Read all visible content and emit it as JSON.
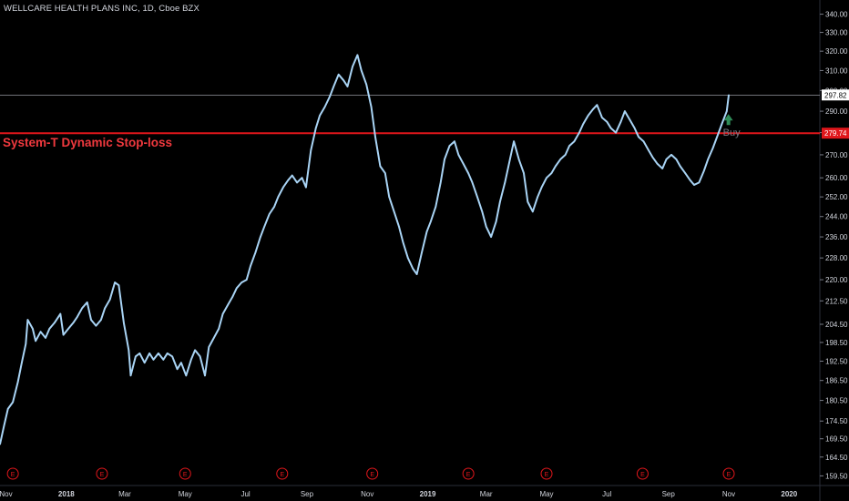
{
  "header": {
    "symbol_title": "WELLCARE HEALTH PLANS INC, 1D, Cboe BZX"
  },
  "colors": {
    "background": "#000000",
    "price_line": "#a9d4f5",
    "stop_line": "#e0161b",
    "text": "#d1d4dc",
    "last_price_label_bg": "#ffffff",
    "stop_label_bg": "#e0161b",
    "earnings_marker": "#e0161b",
    "buy_arrow": "#2e8b57"
  },
  "annotation": {
    "stop_loss_label": "System-T Dynamic Stop-loss",
    "buy_label": "Buy",
    "earnings_marker_label": "E"
  },
  "chart_data": {
    "type": "line",
    "title": "WELLCARE HEALTH PLANS INC, 1D, Cboe BZX",
    "y_scale": "log",
    "ylim": [
      157,
      348
    ],
    "y_ticks": [
      "340.00",
      "330.00",
      "320.00",
      "310.00",
      "300.00",
      "290.00",
      "280.00",
      "270.00",
      "260.00",
      "252.00",
      "244.00",
      "236.00",
      "228.00",
      "220.00",
      "212.50",
      "204.50",
      "198.50",
      "192.50",
      "186.50",
      "180.50",
      "174.50",
      "169.50",
      "164.50",
      "159.50"
    ],
    "x_ticks": [
      "Nov",
      "2018",
      "Mar",
      "May",
      "Jul",
      "Sep",
      "Nov",
      "2019",
      "Mar",
      "May",
      "Jul",
      "Sep",
      "Nov",
      "2020"
    ],
    "x_tick_dates": [
      "2017-11-01",
      "2018-01-01",
      "2018-03-01",
      "2018-05-01",
      "2018-07-01",
      "2018-09-01",
      "2018-11-01",
      "2019-01-01",
      "2019-03-01",
      "2019-05-01",
      "2019-07-01",
      "2019-09-01",
      "2019-11-01",
      "2020-01-01"
    ],
    "xlim": [
      "2017-10-26",
      "2020-02-01"
    ],
    "series": [
      {
        "type": "line",
        "points": [
          [
            "2017-10-26",
            168
          ],
          [
            "2017-10-30",
            173
          ],
          [
            "2017-11-03",
            178
          ],
          [
            "2017-11-08",
            180
          ],
          [
            "2017-11-13",
            186
          ],
          [
            "2017-11-17",
            192
          ],
          [
            "2017-11-21",
            198
          ],
          [
            "2017-11-23",
            206
          ],
          [
            "2017-11-28",
            203
          ],
          [
            "2017-12-01",
            199
          ],
          [
            "2017-12-06",
            202
          ],
          [
            "2017-12-11",
            200
          ],
          [
            "2017-12-15",
            203
          ],
          [
            "2017-12-20",
            205
          ],
          [
            "2017-12-26",
            208
          ],
          [
            "2017-12-29",
            201
          ],
          [
            "2018-01-03",
            203
          ],
          [
            "2018-01-08",
            205
          ],
          [
            "2018-01-12",
            207
          ],
          [
            "2018-01-17",
            210
          ],
          [
            "2018-01-22",
            212
          ],
          [
            "2018-01-26",
            206
          ],
          [
            "2018-01-31",
            204
          ],
          [
            "2018-02-05",
            206
          ],
          [
            "2018-02-09",
            210
          ],
          [
            "2018-02-14",
            213
          ],
          [
            "2018-02-19",
            219
          ],
          [
            "2018-02-23",
            218
          ],
          [
            "2018-02-28",
            205
          ],
          [
            "2018-03-05",
            196
          ],
          [
            "2018-03-07",
            188
          ],
          [
            "2018-03-12",
            194
          ],
          [
            "2018-03-16",
            195
          ],
          [
            "2018-03-21",
            192
          ],
          [
            "2018-03-26",
            195
          ],
          [
            "2018-03-30",
            193
          ],
          [
            "2018-04-04",
            195
          ],
          [
            "2018-04-09",
            193
          ],
          [
            "2018-04-13",
            195
          ],
          [
            "2018-04-18",
            194
          ],
          [
            "2018-04-23",
            190
          ],
          [
            "2018-04-27",
            192
          ],
          [
            "2018-05-02",
            188
          ],
          [
            "2018-05-07",
            193
          ],
          [
            "2018-05-11",
            196
          ],
          [
            "2018-05-16",
            194
          ],
          [
            "2018-05-21",
            188
          ],
          [
            "2018-05-25",
            197
          ],
          [
            "2018-05-30",
            200
          ],
          [
            "2018-06-04",
            203
          ],
          [
            "2018-06-08",
            208
          ],
          [
            "2018-06-13",
            211
          ],
          [
            "2018-06-18",
            214
          ],
          [
            "2018-06-22",
            217
          ],
          [
            "2018-06-27",
            219
          ],
          [
            "2018-07-02",
            220
          ],
          [
            "2018-07-06",
            225
          ],
          [
            "2018-07-11",
            230
          ],
          [
            "2018-07-16",
            236
          ],
          [
            "2018-07-20",
            240
          ],
          [
            "2018-07-25",
            245
          ],
          [
            "2018-07-30",
            248
          ],
          [
            "2018-08-03",
            252
          ],
          [
            "2018-08-08",
            256
          ],
          [
            "2018-08-13",
            259
          ],
          [
            "2018-08-17",
            261
          ],
          [
            "2018-08-22",
            258
          ],
          [
            "2018-08-27",
            260
          ],
          [
            "2018-08-31",
            256
          ],
          [
            "2018-09-05",
            272
          ],
          [
            "2018-09-10",
            282
          ],
          [
            "2018-09-14",
            288
          ],
          [
            "2018-09-19",
            292
          ],
          [
            "2018-09-24",
            297
          ],
          [
            "2018-09-28",
            302
          ],
          [
            "2018-10-03",
            308
          ],
          [
            "2018-10-08",
            305
          ],
          [
            "2018-10-12",
            302
          ],
          [
            "2018-10-17",
            312
          ],
          [
            "2018-10-22",
            318
          ],
          [
            "2018-10-26",
            310
          ],
          [
            "2018-10-31",
            303
          ],
          [
            "2018-11-05",
            292
          ],
          [
            "2018-11-09",
            278
          ],
          [
            "2018-11-14",
            265
          ],
          [
            "2018-11-19",
            262
          ],
          [
            "2018-11-23",
            252
          ],
          [
            "2018-11-28",
            246
          ],
          [
            "2018-12-03",
            240
          ],
          [
            "2018-12-07",
            234
          ],
          [
            "2018-12-12",
            228
          ],
          [
            "2018-12-17",
            224
          ],
          [
            "2018-12-21",
            222
          ],
          [
            "2018-12-26",
            230
          ],
          [
            "2018-12-31",
            238
          ],
          [
            "2019-01-04",
            242
          ],
          [
            "2019-01-09",
            248
          ],
          [
            "2019-01-14",
            258
          ],
          [
            "2019-01-18",
            268
          ],
          [
            "2019-01-23",
            274
          ],
          [
            "2019-01-28",
            276
          ],
          [
            "2019-02-01",
            270
          ],
          [
            "2019-02-06",
            266
          ],
          [
            "2019-02-11",
            262
          ],
          [
            "2019-02-15",
            258
          ],
          [
            "2019-02-20",
            252
          ],
          [
            "2019-02-25",
            246
          ],
          [
            "2019-03-01",
            240
          ],
          [
            "2019-03-06",
            236
          ],
          [
            "2019-03-11",
            242
          ],
          [
            "2019-03-15",
            250
          ],
          [
            "2019-03-20",
            258
          ],
          [
            "2019-03-25",
            268
          ],
          [
            "2019-03-29",
            276
          ],
          [
            "2019-04-03",
            268
          ],
          [
            "2019-04-08",
            262
          ],
          [
            "2019-04-12",
            250
          ],
          [
            "2019-04-17",
            246
          ],
          [
            "2019-04-22",
            252
          ],
          [
            "2019-04-26",
            256
          ],
          [
            "2019-05-01",
            260
          ],
          [
            "2019-05-06",
            262
          ],
          [
            "2019-05-10",
            265
          ],
          [
            "2019-05-15",
            268
          ],
          [
            "2019-05-20",
            270
          ],
          [
            "2019-05-24",
            274
          ],
          [
            "2019-05-29",
            276
          ],
          [
            "2019-06-03",
            280
          ],
          [
            "2019-06-07",
            284
          ],
          [
            "2019-06-12",
            288
          ],
          [
            "2019-06-17",
            291
          ],
          [
            "2019-06-21",
            293
          ],
          [
            "2019-06-26",
            287
          ],
          [
            "2019-07-01",
            285
          ],
          [
            "2019-07-05",
            282
          ],
          [
            "2019-07-10",
            280
          ],
          [
            "2019-07-15",
            285
          ],
          [
            "2019-07-19",
            290
          ],
          [
            "2019-07-24",
            286
          ],
          [
            "2019-07-29",
            282
          ],
          [
            "2019-08-02",
            278
          ],
          [
            "2019-08-07",
            276
          ],
          [
            "2019-08-12",
            272
          ],
          [
            "2019-08-16",
            269
          ],
          [
            "2019-08-21",
            266
          ],
          [
            "2019-08-26",
            264
          ],
          [
            "2019-08-30",
            268
          ],
          [
            "2019-09-04",
            270
          ],
          [
            "2019-09-09",
            268
          ],
          [
            "2019-09-13",
            265
          ],
          [
            "2019-09-18",
            262
          ],
          [
            "2019-09-23",
            259
          ],
          [
            "2019-09-27",
            257
          ],
          [
            "2019-10-02",
            258
          ],
          [
            "2019-10-07",
            263
          ],
          [
            "2019-10-11",
            268
          ],
          [
            "2019-10-16",
            273
          ],
          [
            "2019-10-21",
            279
          ],
          [
            "2019-10-25",
            284
          ],
          [
            "2019-10-30",
            290
          ],
          [
            "2019-11-01",
            297.82
          ]
        ]
      }
    ],
    "horizontal_lines": [
      {
        "value": 297.82,
        "label": "297.82",
        "kind": "last-price"
      },
      {
        "value": 279.74,
        "label": "279.74",
        "kind": "stop-loss"
      }
    ],
    "earnings_events": [
      "2017-11-08",
      "2018-02-06",
      "2018-05-01",
      "2018-08-07",
      "2018-11-06",
      "2019-02-11",
      "2019-05-01",
      "2019-08-06",
      "2019-11-01"
    ],
    "buy_signal": {
      "date": "2019-10-28",
      "value": 281
    }
  }
}
